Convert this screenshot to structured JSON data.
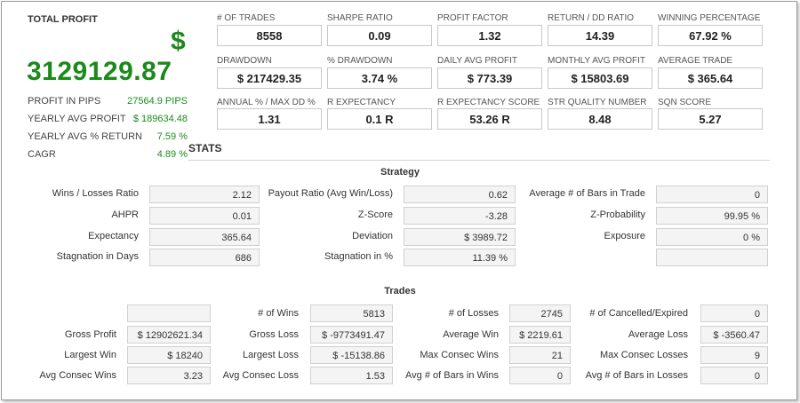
{
  "summary": {
    "total_profit_label": "TOTAL PROFIT",
    "currency_symbol": "$",
    "total_profit_value": "3129129.87",
    "rows": [
      {
        "label": "PROFIT IN PIPS",
        "value": "27564.9 PIPS"
      },
      {
        "label": "YEARLY AVG PROFIT",
        "value": "$ 189634.48"
      },
      {
        "label": "YEARLY AVG % RETURN",
        "value": "7.59 %"
      },
      {
        "label": "CAGR",
        "value": "4.89 %"
      }
    ]
  },
  "metrics": [
    {
      "label": "# OF TRADES",
      "value": "8558"
    },
    {
      "label": "SHARPE RATIO",
      "value": "0.09"
    },
    {
      "label": "PROFIT FACTOR",
      "value": "1.32"
    },
    {
      "label": "RETURN / DD RATIO",
      "value": "14.39"
    },
    {
      "label": "WINNING PERCENTAGE",
      "value": "67.92 %"
    },
    {
      "label": "DRAWDOWN",
      "value": "$ 217429.35"
    },
    {
      "label": "% DRAWDOWN",
      "value": "3.74 %"
    },
    {
      "label": "DAILY AVG PROFIT",
      "value": "$ 773.39"
    },
    {
      "label": "MONTHLY AVG PROFIT",
      "value": "$ 15803.69"
    },
    {
      "label": "AVERAGE TRADE",
      "value": "$ 365.64"
    },
    {
      "label": "ANNUAL % / MAX DD %",
      "value": "1.31"
    },
    {
      "label": "R EXPECTANCY",
      "value": "0.1 R"
    },
    {
      "label": "R EXPECTANCY SCORE",
      "value": "53.26 R"
    },
    {
      "label": "STR QUALITY NUMBER",
      "value": "8.48"
    },
    {
      "label": "SQN SCORE",
      "value": "5.27"
    }
  ],
  "stats": {
    "heading": "STATS",
    "strategy": {
      "title": "Strategy",
      "rows": [
        [
          {
            "label": "Wins / Losses Ratio",
            "value": "2.12"
          },
          {
            "label": "Payout Ratio (Avg Win/Loss)",
            "value": "0.62"
          },
          {
            "label": "Average # of Bars in Trade",
            "value": "0"
          }
        ],
        [
          {
            "label": "AHPR",
            "value": "0.01"
          },
          {
            "label": "Z-Score",
            "value": "-3.28"
          },
          {
            "label": "Z-Probability",
            "value": "99.95 %"
          }
        ],
        [
          {
            "label": "Expectancy",
            "value": "365.64"
          },
          {
            "label": "Deviation",
            "value": "$ 3989.72"
          },
          {
            "label": "Exposure",
            "value": "0 %"
          }
        ],
        [
          {
            "label": "Stagnation in Days",
            "value": "686"
          },
          {
            "label": "Stagnation in %",
            "value": "11.39 %"
          },
          {
            "label": "",
            "value": ""
          }
        ]
      ]
    },
    "trades": {
      "title": "Trades",
      "rows": [
        [
          {
            "label": "",
            "value": ""
          },
          {
            "label": "# of Wins",
            "value": "5813"
          },
          {
            "label": "# of Losses",
            "value": "2745"
          },
          {
            "label": "# of Cancelled/Expired",
            "value": "0"
          }
        ],
        [
          {
            "label": "Gross Profit",
            "value": "$ 12902621.34"
          },
          {
            "label": "Gross Loss",
            "value": "$ -9773491.47"
          },
          {
            "label": "Average Win",
            "value": "$ 2219.61"
          },
          {
            "label": "Average Loss",
            "value": "$ -3560.47"
          }
        ],
        [
          {
            "label": "Largest Win",
            "value": "$ 18240"
          },
          {
            "label": "Largest Loss",
            "value": "$ -15138.86"
          },
          {
            "label": "Max Consec Wins",
            "value": "21"
          },
          {
            "label": "Max Consec Losses",
            "value": "9"
          }
        ],
        [
          {
            "label": "Avg Consec Wins",
            "value": "3.23"
          },
          {
            "label": "Avg Consec Loss",
            "value": "1.53"
          },
          {
            "label": "Avg # of Bars in Wins",
            "value": "0"
          },
          {
            "label": "Avg # of Bars in Losses",
            "value": "0"
          }
        ]
      ]
    }
  }
}
